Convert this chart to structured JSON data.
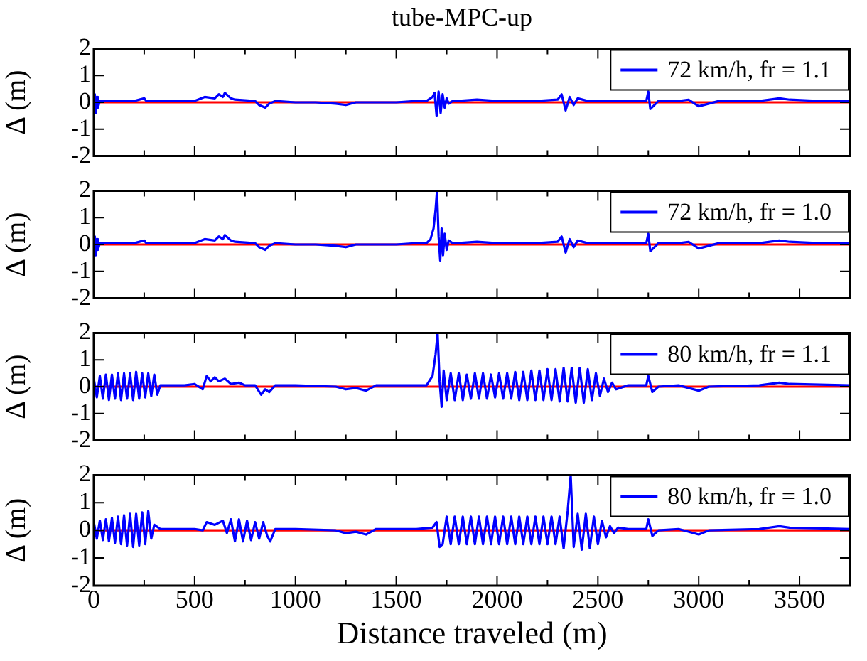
{
  "chart_data": [
    {
      "type": "line",
      "title": "tube-MPC-up",
      "ylabel": "Δ (m)",
      "xlim": [
        0,
        3750
      ],
      "xticks": [
        0,
        {
          "value": 250,
          "label": null
        },
        500,
        {
          "value": 750,
          "label": null
        },
        1000,
        {
          "value": 1250,
          "label": null
        },
        1500,
        {
          "value": 1750,
          "label": null
        },
        2000,
        {
          "value": 2250,
          "label": null
        },
        2500,
        {
          "value": 2750,
          "label": null
        },
        3000,
        {
          "value": 3250,
          "label": null
        },
        3500
      ],
      "ylim": [
        -2,
        2
      ],
      "yticks": [
        -2,
        -1,
        0,
        1,
        2
      ],
      "tick_labels": "y",
      "legend": "top right",
      "ref_lines": [
        {
          "axis": "y",
          "value": 0,
          "color": "#ff0000"
        }
      ],
      "series": [
        {
          "name": "72 km/h, fr = 1.1",
          "color": "#0000ff",
          "x": [
            0,
            5,
            10,
            15,
            20,
            30,
            100,
            200,
            250,
            260,
            300,
            500,
            550,
            600,
            620,
            640,
            650,
            680,
            700,
            800,
            820,
            850,
            870,
            900,
            1000,
            1100,
            1200,
            1250,
            1300,
            1400,
            1500,
            1600,
            1650,
            1680,
            1690,
            1700,
            1710,
            1720,
            1730,
            1740,
            1750,
            1760,
            1780,
            1800,
            1900,
            2000,
            2200,
            2300,
            2320,
            2340,
            2360,
            2380,
            2400,
            2450,
            2500,
            2700,
            2740,
            2750,
            2760,
            2780,
            2800,
            2900,
            2950,
            3000,
            3050,
            3100,
            3300,
            3400,
            3450,
            3600,
            3750
          ],
          "values": [
            0,
            0.3,
            -0.4,
            0.2,
            -0.2,
            0.05,
            0.05,
            0.05,
            0.15,
            0.05,
            0.05,
            0.05,
            0.2,
            0.15,
            0.3,
            0.2,
            0.35,
            0.15,
            0.1,
            0.05,
            -0.1,
            -0.2,
            -0.05,
            0.05,
            0,
            0,
            -0.05,
            -0.1,
            0,
            0,
            0,
            0.05,
            0.05,
            0.2,
            0.35,
            -0.5,
            0.4,
            -0.4,
            0.3,
            -0.2,
            0.15,
            -0.05,
            0.05,
            0.05,
            0.1,
            0.05,
            0.05,
            0.1,
            0.3,
            -0.3,
            0.2,
            -0.1,
            0.15,
            0.05,
            0.05,
            0.05,
            0.05,
            0.4,
            -0.25,
            -0.1,
            0.05,
            0.05,
            0.1,
            -0.15,
            -0.05,
            0.05,
            0.05,
            0.15,
            0.1,
            0.05,
            0.05
          ]
        }
      ]
    },
    {
      "type": "line",
      "ylabel": "Δ (m)",
      "xlim": [
        0,
        3750
      ],
      "xticks": [
        0,
        {
          "value": 250,
          "label": null
        },
        500,
        {
          "value": 750,
          "label": null
        },
        1000,
        {
          "value": 1250,
          "label": null
        },
        1500,
        {
          "value": 1750,
          "label": null
        },
        2000,
        {
          "value": 2250,
          "label": null
        },
        2500,
        {
          "value": 2750,
          "label": null
        },
        3000,
        {
          "value": 3250,
          "label": null
        },
        3500
      ],
      "ylim": [
        -2,
        2
      ],
      "yticks": [
        -2,
        -1,
        0,
        1,
        2
      ],
      "tick_labels": "y",
      "legend": "top right",
      "ref_lines": [
        {
          "axis": "y",
          "value": 0,
          "color": "#ff0000"
        }
      ],
      "series": [
        {
          "name": "72 km/h, fr = 1.0",
          "color": "#0000ff",
          "x": [
            0,
            5,
            10,
            15,
            20,
            30,
            100,
            200,
            250,
            260,
            300,
            500,
            550,
            600,
            620,
            640,
            650,
            680,
            700,
            800,
            820,
            850,
            870,
            900,
            1000,
            1100,
            1200,
            1250,
            1300,
            1400,
            1500,
            1600,
            1650,
            1670,
            1685,
            1695,
            1702,
            1710,
            1718,
            1725,
            1732,
            1740,
            1750,
            1760,
            1780,
            1800,
            1900,
            2000,
            2200,
            2300,
            2320,
            2340,
            2360,
            2380,
            2400,
            2450,
            2500,
            2700,
            2740,
            2750,
            2760,
            2780,
            2800,
            2900,
            2950,
            3000,
            3050,
            3100,
            3300,
            3400,
            3450,
            3600,
            3750
          ],
          "values": [
            0,
            0.3,
            -0.4,
            0.2,
            -0.2,
            0.05,
            0.05,
            0.05,
            0.15,
            0.05,
            0.05,
            0.05,
            0.2,
            0.15,
            0.3,
            0.2,
            0.35,
            0.15,
            0.1,
            0.05,
            -0.1,
            -0.2,
            -0.05,
            0.05,
            0,
            0,
            -0.05,
            -0.1,
            0,
            0,
            0,
            0.05,
            0.05,
            0.2,
            0.6,
            1.3,
            2.0,
            0.3,
            -0.6,
            0.6,
            -0.4,
            0.4,
            -0.2,
            0.15,
            0.05,
            0.05,
            0.1,
            0.05,
            0.05,
            0.1,
            0.3,
            -0.3,
            0.2,
            -0.1,
            0.15,
            0.05,
            0.05,
            0.05,
            0.05,
            0.4,
            -0.25,
            -0.1,
            0.05,
            0.05,
            0.1,
            -0.15,
            -0.05,
            0.05,
            0.05,
            0.15,
            0.1,
            0.05,
            0.05
          ]
        }
      ]
    },
    {
      "type": "line",
      "ylabel": "Δ (m)",
      "xlim": [
        0,
        3750
      ],
      "xticks": [
        0,
        {
          "value": 250,
          "label": null
        },
        500,
        {
          "value": 750,
          "label": null
        },
        1000,
        {
          "value": 1250,
          "label": null
        },
        1500,
        {
          "value": 1750,
          "label": null
        },
        2000,
        {
          "value": 2250,
          "label": null
        },
        2500,
        {
          "value": 2750,
          "label": null
        },
        3000,
        {
          "value": 3250,
          "label": null
        },
        3500
      ],
      "ylim": [
        -2,
        2
      ],
      "yticks": [
        -2,
        -1,
        0,
        1,
        2
      ],
      "tick_labels": "y",
      "legend": "top right",
      "ref_lines": [
        {
          "axis": "y",
          "value": 0,
          "color": "#ff0000"
        }
      ],
      "series": [
        {
          "name": "80 km/h, fr = 1.1",
          "color": "#0000ff",
          "x": [
            0,
            15,
            30,
            45,
            60,
            75,
            90,
            105,
            120,
            135,
            150,
            165,
            180,
            195,
            210,
            225,
            240,
            255,
            270,
            285,
            300,
            315,
            330,
            400,
            450,
            500,
            540,
            560,
            580,
            600,
            620,
            650,
            680,
            720,
            750,
            800,
            830,
            850,
            870,
            900,
            1000,
            1200,
            1250,
            1300,
            1350,
            1400,
            1600,
            1650,
            1680,
            1695,
            1705,
            1715,
            1725,
            1735,
            1750,
            1770,
            1790,
            1810,
            1830,
            1850,
            1870,
            1890,
            1910,
            1930,
            1950,
            1970,
            1990,
            2010,
            2030,
            2050,
            2070,
            2090,
            2110,
            2130,
            2150,
            2170,
            2190,
            2210,
            2230,
            2250,
            2270,
            2290,
            2310,
            2330,
            2350,
            2370,
            2390,
            2410,
            2430,
            2450,
            2470,
            2490,
            2510,
            2530,
            2550,
            2570,
            2590,
            2650,
            2740,
            2750,
            2770,
            2800,
            2900,
            3000,
            3050,
            3300,
            3400,
            3450,
            3750
          ],
          "values": [
            0.3,
            -0.4,
            0.4,
            -0.45,
            0.45,
            -0.5,
            0.45,
            -0.45,
            0.5,
            -0.5,
            0.5,
            -0.45,
            0.5,
            -0.5,
            0.55,
            -0.45,
            0.5,
            -0.4,
            0.5,
            -0.35,
            0.45,
            -0.3,
            0.05,
            0.05,
            0.05,
            0.1,
            -0.1,
            0.4,
            0.2,
            0.35,
            0.2,
            0.3,
            0.1,
            0.15,
            0.05,
            0.05,
            -0.3,
            -0.1,
            -0.2,
            0.05,
            0.05,
            0,
            -0.1,
            -0.05,
            -0.15,
            0.05,
            0.05,
            0.05,
            0.4,
            1.2,
            2.0,
            0.2,
            -0.75,
            0.6,
            -0.5,
            0.5,
            -0.5,
            0.5,
            -0.5,
            0.45,
            -0.45,
            0.5,
            -0.45,
            0.5,
            -0.45,
            0.45,
            -0.4,
            0.5,
            -0.45,
            0.5,
            -0.45,
            0.55,
            -0.5,
            0.55,
            -0.5,
            0.6,
            -0.5,
            0.6,
            -0.5,
            0.65,
            -0.5,
            0.65,
            -0.55,
            0.7,
            -0.55,
            0.7,
            -0.6,
            0.7,
            -0.6,
            0.65,
            -0.5,
            0.5,
            -0.35,
            0.3,
            -0.2,
            0.15,
            -0.1,
            0.05,
            0.05,
            0.4,
            -0.2,
            0,
            0.05,
            -0.15,
            0,
            0.05,
            0.15,
            0.1,
            0.05
          ]
        }
      ]
    },
    {
      "type": "line",
      "ylabel": "Δ (m)",
      "xlabel": "Distance traveled (m)",
      "xlim": [
        0,
        3750
      ],
      "xticks": [
        0,
        {
          "value": 250,
          "label": null
        },
        500,
        {
          "value": 750,
          "label": null
        },
        1000,
        {
          "value": 1250,
          "label": null
        },
        1500,
        {
          "value": 1750,
          "label": null
        },
        2000,
        {
          "value": 2250,
          "label": null
        },
        2500,
        {
          "value": 2750,
          "label": null
        },
        3000,
        {
          "value": 3250,
          "label": null
        },
        3500
      ],
      "ylim": [
        -2,
        2
      ],
      "yticks": [
        -2,
        -1,
        0,
        1,
        2
      ],
      "legend": "top right",
      "ref_lines": [
        {
          "axis": "y",
          "value": 0,
          "color": "#ff0000"
        }
      ],
      "series": [
        {
          "name": "80 km/h, fr = 1.0",
          "color": "#0000ff",
          "x": [
            0,
            15,
            30,
            45,
            60,
            75,
            90,
            105,
            120,
            135,
            150,
            165,
            180,
            195,
            210,
            225,
            240,
            255,
            270,
            285,
            300,
            330,
            400,
            500,
            540,
            560,
            600,
            640,
            660,
            680,
            700,
            720,
            740,
            760,
            780,
            800,
            820,
            840,
            860,
            875,
            900,
            1000,
            1200,
            1250,
            1300,
            1350,
            1400,
            1600,
            1680,
            1700,
            1715,
            1730,
            1750,
            1770,
            1790,
            1810,
            1830,
            1850,
            1870,
            1890,
            1910,
            1930,
            1950,
            1970,
            1990,
            2010,
            2030,
            2050,
            2070,
            2090,
            2110,
            2130,
            2150,
            2170,
            2190,
            2210,
            2230,
            2250,
            2270,
            2290,
            2310,
            2330,
            2350,
            2365,
            2380,
            2400,
            2420,
            2440,
            2460,
            2480,
            2500,
            2520,
            2540,
            2560,
            2580,
            2600,
            2650,
            2740,
            2750,
            2770,
            2800,
            2900,
            3000,
            3050,
            3300,
            3400,
            3450,
            3750
          ],
          "values": [
            0.3,
            -0.3,
            0.35,
            -0.35,
            0.4,
            -0.4,
            0.45,
            -0.45,
            0.5,
            -0.5,
            0.55,
            -0.55,
            0.6,
            -0.6,
            0.6,
            -0.55,
            0.65,
            -0.5,
            0.7,
            -0.3,
            0.2,
            0.05,
            0.05,
            0.05,
            0,
            0.3,
            0.2,
            0.35,
            -0.1,
            0.4,
            -0.4,
            0.4,
            -0.4,
            0.35,
            -0.35,
            0.3,
            -0.3,
            0.3,
            -0.2,
            -0.4,
            0.05,
            0.05,
            0,
            -0.1,
            -0.05,
            -0.15,
            0.05,
            0.05,
            0.1,
            0.3,
            -0.6,
            -0.5,
            0.5,
            -0.5,
            0.5,
            -0.5,
            0.5,
            -0.5,
            0.5,
            -0.5,
            0.5,
            -0.5,
            0.5,
            -0.5,
            0.5,
            -0.5,
            0.5,
            -0.5,
            0.5,
            -0.5,
            0.5,
            -0.5,
            0.5,
            -0.5,
            0.5,
            -0.5,
            0.5,
            -0.5,
            0.5,
            -0.5,
            0.5,
            -0.65,
            0.7,
            2.0,
            -0.6,
            0.6,
            -0.7,
            0.6,
            -0.65,
            0.5,
            -0.5,
            0.35,
            -0.25,
            0.15,
            -0.1,
            0.1,
            0.05,
            0.05,
            0.4,
            -0.2,
            0,
            0.05,
            -0.15,
            0,
            0.05,
            0.15,
            0.1,
            0.05
          ]
        }
      ]
    }
  ]
}
